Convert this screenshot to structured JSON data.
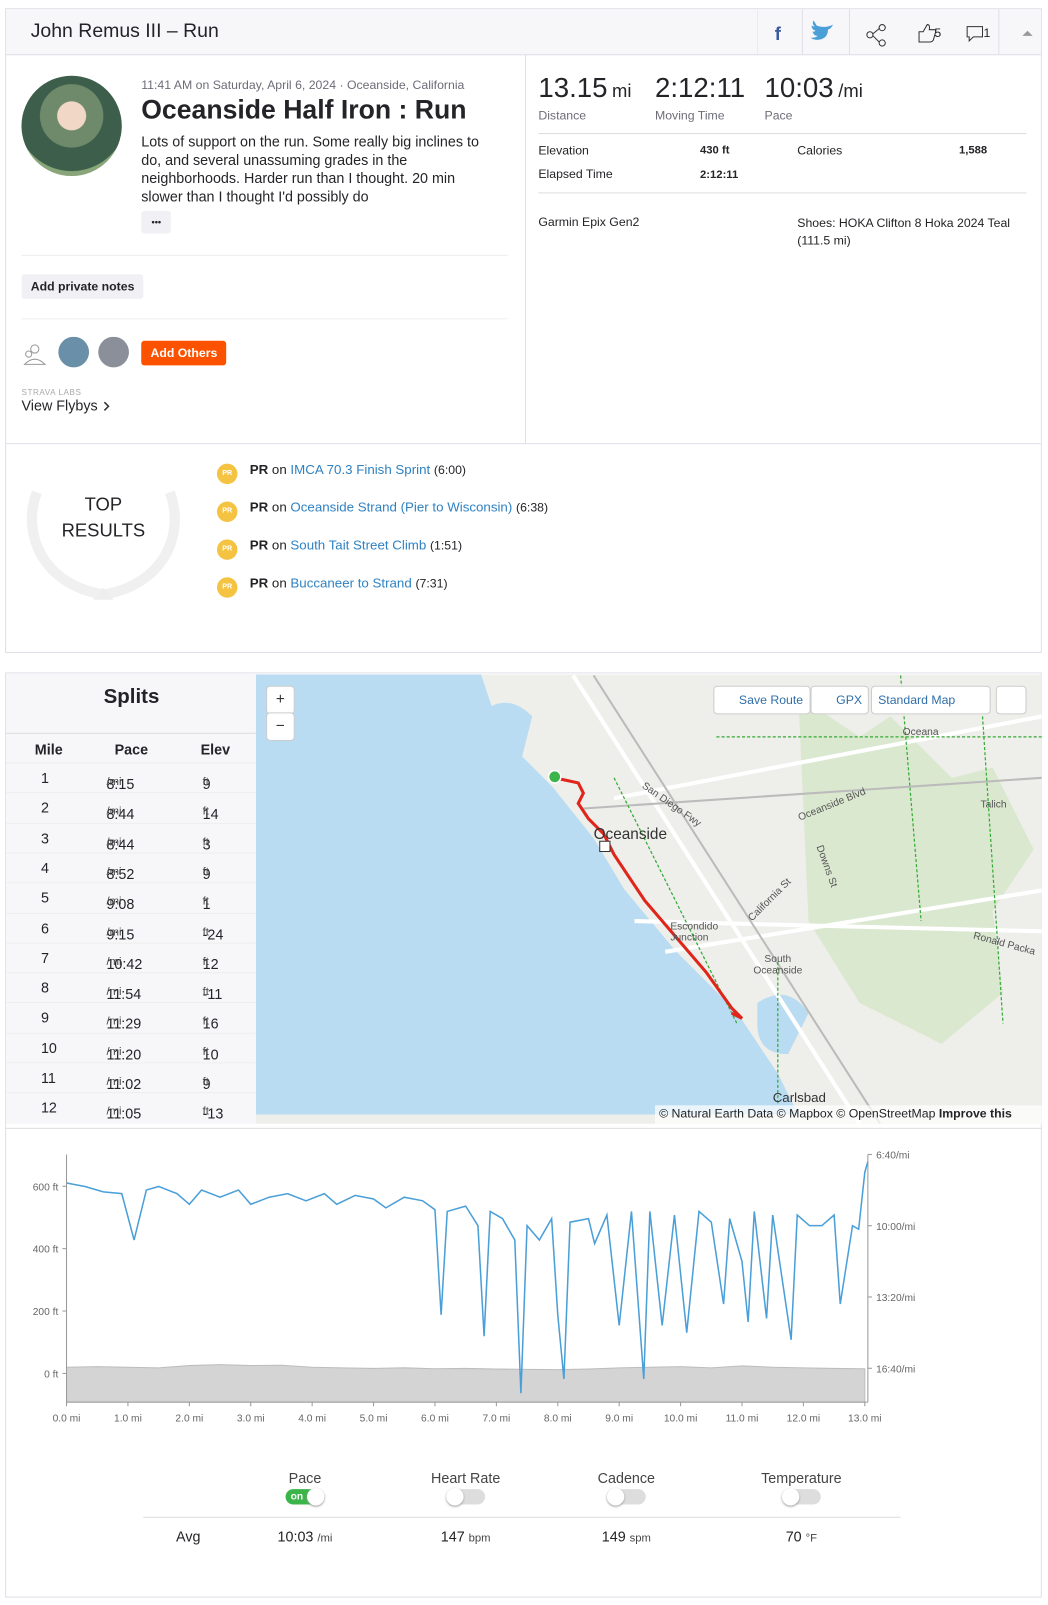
{
  "header": {
    "title": "John Remus III – Run",
    "kudos": "5",
    "comments": "1"
  },
  "activity": {
    "meta": "11:41 AM on Saturday, April 6, 2024 · Oceanside, California",
    "name": "Oceanside Half Iron : Run",
    "description": "Lots of support on the run. Some really big inclines to do, and several unassuming grades in the neighborhoods. Harder run than I thought. 20 min slower than I thought I'd possibly do",
    "more": "•••",
    "private_notes": "Add private notes",
    "add_others": "Add Others",
    "labs": "STRAVA LABS",
    "flybys": "View Flybys"
  },
  "stats": {
    "primary": [
      {
        "value": "13.15",
        "unit": "mi",
        "label": "Distance"
      },
      {
        "value": "2:12:11",
        "label": "Moving Time"
      },
      {
        "value": "10:03",
        "unit": "/mi",
        "label": "Pace"
      }
    ],
    "secondary": [
      {
        "label": "Elevation",
        "value": "430 ft"
      },
      {
        "label": "Elapsed Time",
        "value": "2:12:11"
      },
      {
        "label": "Calories",
        "value": "1,588"
      }
    ],
    "device": "Garmin Epix Gen2",
    "shoes": "Shoes: HOKA Clifton 8 Hoka 2024 Teal (111.5 mi)"
  },
  "top_results": {
    "title": "TOP RESULTS",
    "items": [
      {
        "label": "PR",
        "relation": "on",
        "segment": "IMCA 70.3 Finish Sprint",
        "time": "(6:00)"
      },
      {
        "label": "PR",
        "relation": "on",
        "segment": "Oceanside Strand (Pier to Wisconsin)",
        "time": "(6:38)"
      },
      {
        "label": "PR",
        "relation": "on",
        "segment": "South Tait Street Climb",
        "time": "(1:51)"
      },
      {
        "label": "PR",
        "relation": "on",
        "segment": "Buccaneer to Strand",
        "time": "(7:31)"
      }
    ]
  },
  "splits": {
    "title": "Splits",
    "columns": [
      "Mile",
      "Pace",
      "Elev"
    ],
    "pace_unit": "/mi",
    "elev_unit": "ft",
    "rows": [
      {
        "mile": "1",
        "pace": "8:15",
        "elev": "9"
      },
      {
        "mile": "2",
        "pace": "8:44",
        "elev": "14"
      },
      {
        "mile": "3",
        "pace": "8:44",
        "elev": "3"
      },
      {
        "mile": "4",
        "pace": "8:52",
        "elev": "9"
      },
      {
        "mile": "5",
        "pace": "9:08",
        "elev": "1"
      },
      {
        "mile": "6",
        "pace": "9:15",
        "elev": "-24"
      },
      {
        "mile": "7",
        "pace": "10:42",
        "elev": "12"
      },
      {
        "mile": "8",
        "pace": "11:54",
        "elev": "-11"
      },
      {
        "mile": "9",
        "pace": "11:29",
        "elev": "16"
      },
      {
        "mile": "10",
        "pace": "11:20",
        "elev": "10"
      },
      {
        "mile": "11",
        "pace": "11:02",
        "elev": "9"
      },
      {
        "mile": "12",
        "pace": "11:05",
        "elev": "-13"
      }
    ]
  },
  "map": {
    "zoom_in": "+",
    "zoom_out": "−",
    "save_route": "Save Route",
    "gpx": "GPX",
    "style": "Standard Map",
    "labels": [
      "Oceanside",
      "Escondido Junction",
      "South Oceanside",
      "Carlsbad",
      "Oceana",
      "Talich",
      "San Diego Fwy",
      "Oceanside Blvd",
      "Downs St",
      "California St",
      "Ronald Packa"
    ],
    "attribution": "© Natural Earth Data © Mapbox © OpenStreetMap",
    "improve": "Improve this map"
  },
  "chart_data": {
    "type": "line",
    "xlim": [
      0,
      13.05
    ],
    "xticks": [
      {
        "value": 0,
        "label": "0.0 mi"
      },
      {
        "value": 1,
        "label": "1.0 mi"
      },
      {
        "value": 2,
        "label": "2.0 mi"
      },
      {
        "value": 3,
        "label": "3.0 mi"
      },
      {
        "value": 4,
        "label": "4.0 mi"
      },
      {
        "value": 5,
        "label": "5.0 mi"
      },
      {
        "value": 6,
        "label": "6.0 mi"
      },
      {
        "value": 7,
        "label": "7.0 mi"
      },
      {
        "value": 8,
        "label": "8.0 mi"
      },
      {
        "value": 9,
        "label": "9.0 mi"
      },
      {
        "value": 10,
        "label": "10.0 mi"
      },
      {
        "value": 11,
        "label": "11.0 mi"
      },
      {
        "value": 12,
        "label": "12.0 mi"
      },
      {
        "value": 13,
        "label": "13.0 mi"
      }
    ],
    "ylim": [
      -92,
      702
    ],
    "yticks": [
      {
        "value": 0,
        "label": "0 ft"
      },
      {
        "value": 200,
        "label": "200 ft"
      },
      {
        "value": 400,
        "label": "400 ft"
      },
      {
        "value": 600,
        "label": "600 ft"
      }
    ],
    "y2lim": [
      1095,
      400
    ],
    "y2ticks": [
      {
        "value": 400,
        "label": "6:40/mi"
      },
      {
        "value": 600,
        "label": "10:00/mi"
      },
      {
        "value": 800,
        "label": "13:20/mi"
      },
      {
        "value": 1000,
        "label": "16:40/mi"
      }
    ],
    "series": [
      {
        "color": "#d4d4d4",
        "area": true,
        "x": [
          0,
          0.5,
          1,
          1.5,
          2,
          2.5,
          3,
          3.5,
          4,
          4.5,
          5,
          5.5,
          6,
          6.5,
          7,
          7.5,
          8,
          8.5,
          9,
          9.5,
          10,
          10.5,
          11,
          11.5,
          12,
          12.5,
          13
        ],
        "values": [
          20,
          22,
          20,
          18,
          25,
          28,
          25,
          26,
          20,
          18,
          16,
          18,
          15,
          16,
          14,
          13,
          12,
          14,
          18,
          20,
          22,
          18,
          24,
          20,
          18,
          16,
          15
        ]
      },
      {
        "color": "#4a9fd8",
        "axis": "y2",
        "x": [
          0,
          0.3,
          0.6,
          0.9,
          1.1,
          1.3,
          1.5,
          1.8,
          2.0,
          2.2,
          2.5,
          2.8,
          3.0,
          3.3,
          3.6,
          3.9,
          4.2,
          4.4,
          4.7,
          5.0,
          5.2,
          5.5,
          5.8,
          6.0,
          6.1,
          6.2,
          6.5,
          6.7,
          6.8,
          6.9,
          7.1,
          7.3,
          7.4,
          7.5,
          7.7,
          7.9,
          8.0,
          8.1,
          8.2,
          8.5,
          8.6,
          8.8,
          9.0,
          9.2,
          9.4,
          9.5,
          9.7,
          9.9,
          10.1,
          10.3,
          10.5,
          10.7,
          10.8,
          11.0,
          11.1,
          11.2,
          11.4,
          11.5,
          11.8,
          11.9,
          12.1,
          12.3,
          12.5,
          12.6,
          12.8,
          12.9,
          13.0,
          13.05
        ],
        "values": [
          480,
          490,
          505,
          510,
          640,
          500,
          490,
          510,
          540,
          500,
          520,
          500,
          540,
          520,
          510,
          530,
          510,
          540,
          515,
          525,
          550,
          520,
          530,
          555,
          850,
          560,
          545,
          600,
          910,
          560,
          580,
          640,
          1070,
          600,
          640,
          580,
          850,
          1030,
          590,
          580,
          650,
          570,
          880,
          560,
          1030,
          560,
          880,
          570,
          900,
          560,
          590,
          820,
          580,
          700,
          870,
          560,
          860,
          570,
          920,
          570,
          600,
          600,
          570,
          820,
          600,
          610,
          450,
          420
        ]
      }
    ]
  },
  "streams": {
    "toggles": [
      {
        "name": "Pace",
        "state": "on"
      },
      {
        "name": "Heart Rate"
      },
      {
        "name": "Cadence"
      },
      {
        "name": "Temperature"
      }
    ],
    "avg_label": "Avg",
    "averages": [
      {
        "value": "10:03",
        "unit": "/mi"
      },
      {
        "value": "147",
        "unit": "bpm"
      },
      {
        "value": "149",
        "unit": "spm"
      },
      {
        "value": "70",
        "unit": "°F"
      }
    ]
  }
}
